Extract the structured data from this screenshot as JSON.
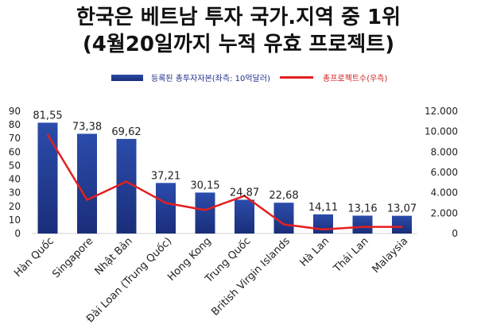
{
  "title_line1": "한국은 베트남 투자 국가.지역 중 1위",
  "title_line2": "(4월20일까지 누적 유효 프로젝트)",
  "colors": {
    "bar": "#1f3a93",
    "line": "#e41f1f"
  },
  "chart_data": {
    "type": "bar",
    "categories": [
      "Hàn Quốc",
      "Singapore",
      "Nhật Bản",
      "Đài Loan (Trung Quốc)",
      "Hong Kong",
      "Trung Quốc",
      "British Virgin Islands",
      "Hà Lan",
      "Thái Lan",
      "Malaysia"
    ],
    "series": [
      {
        "name": "등록된 총투자자본(좌측: 10억달러)",
        "type": "bar",
        "axis": "left",
        "values": [
          81.55,
          73.38,
          69.62,
          37.21,
          30.15,
          24.87,
          22.68,
          14.11,
          13.16,
          13.07
        ],
        "labels": [
          "81,55",
          "73,38",
          "69,62",
          "37,21",
          "30,15",
          "24,87",
          "22,68",
          "14,11",
          "13,16",
          "13,07"
        ]
      },
      {
        "name": "총프로젝트수(우측)",
        "type": "line",
        "axis": "right",
        "values": [
          9700,
          3300,
          5100,
          3000,
          2300,
          3700,
          900,
          400,
          650,
          650
        ]
      }
    ],
    "y_left": {
      "min": 0,
      "max": 90,
      "ticks": [
        "0",
        "10",
        "20",
        "30",
        "40",
        "50",
        "60",
        "70",
        "80",
        "90"
      ]
    },
    "y_right": {
      "min": 0,
      "max": 12000,
      "ticks": [
        "0",
        "2.000",
        "4.000",
        "6.000",
        "8.000",
        "10.000",
        "12.000"
      ]
    },
    "grid": false,
    "legend_position": "top"
  }
}
